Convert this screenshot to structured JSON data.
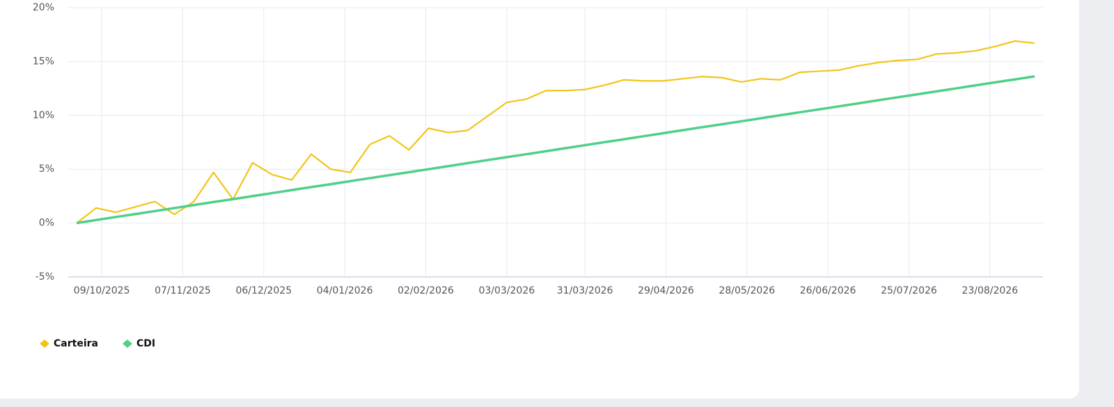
{
  "chart_data": {
    "type": "line",
    "x": [
      "30/09/2025",
      "07/10/2025",
      "14/10/2025",
      "21/10/2025",
      "28/10/2025",
      "04/11/2025",
      "11/11/2025",
      "18/11/2025",
      "25/11/2025",
      "02/12/2025",
      "09/12/2025",
      "16/12/2025",
      "23/12/2025",
      "30/12/2025",
      "06/01/2026",
      "13/01/2026",
      "20/01/2026",
      "27/01/2026",
      "03/02/2026",
      "10/02/2026",
      "17/02/2026",
      "24/02/2026",
      "03/03/2026",
      "10/03/2026",
      "17/03/2026",
      "24/03/2026",
      "31/03/2026",
      "07/04/2026",
      "14/04/2026",
      "21/04/2026",
      "28/04/2026",
      "05/05/2026",
      "12/05/2026",
      "19/05/2026",
      "26/05/2026",
      "02/06/2026",
      "09/06/2026",
      "16/06/2026",
      "23/06/2026",
      "30/06/2026",
      "07/07/2026",
      "14/07/2026",
      "21/07/2026",
      "28/07/2026",
      "04/08/2026",
      "11/08/2026",
      "18/08/2026",
      "25/08/2026",
      "01/09/2026",
      "08/09/2026"
    ],
    "series": [
      {
        "name": "Carteira",
        "color": "#f2c417",
        "values": [
          0,
          1.4,
          1.0,
          1.5,
          2.0,
          0.8,
          2.0,
          4.7,
          2.2,
          5.6,
          4.5,
          4.0,
          6.4,
          5.0,
          4.7,
          7.3,
          8.1,
          6.8,
          8.8,
          8.4,
          8.6,
          9.9,
          11.2,
          11.5,
          12.3,
          12.3,
          12.4,
          12.8,
          13.3,
          13.2,
          13.2,
          13.4,
          13.6,
          13.5,
          13.1,
          13.4,
          13.3,
          14.0,
          14.1,
          14.2,
          14.6,
          14.9,
          15.1,
          15.2,
          15.7,
          15.8,
          16.0,
          16.4,
          16.9,
          16.7
        ]
      },
      {
        "name": "CDI",
        "color": "#4fcf88",
        "values": [
          0,
          0.28,
          0.56,
          0.83,
          1.11,
          1.39,
          1.67,
          1.95,
          2.22,
          2.5,
          2.78,
          3.06,
          3.34,
          3.61,
          3.89,
          4.17,
          4.45,
          4.72,
          5.0,
          5.28,
          5.56,
          5.84,
          6.12,
          6.39,
          6.67,
          6.95,
          7.23,
          7.51,
          7.78,
          8.06,
          8.34,
          8.62,
          8.9,
          9.17,
          9.45,
          9.73,
          10.01,
          10.29,
          10.56,
          10.84,
          11.12,
          11.4,
          11.68,
          11.95,
          12.23,
          12.51,
          12.79,
          13.07,
          13.34,
          13.62
        ]
      }
    ],
    "xlim": [
      "27/09/2025",
      "11/09/2026"
    ],
    "xticks": [
      "09/10/2025",
      "07/11/2025",
      "06/12/2025",
      "04/01/2026",
      "02/02/2026",
      "03/03/2026",
      "31/03/2026",
      "29/04/2026",
      "28/05/2026",
      "26/06/2026",
      "25/07/2026",
      "23/08/2026"
    ],
    "ylim": [
      -5,
      20
    ],
    "yticks": [
      {
        "value": -5,
        "label": "-5%"
      },
      {
        "value": 0,
        "label": "0%"
      },
      {
        "value": 5,
        "label": "5%"
      },
      {
        "value": 10,
        "label": "10%"
      },
      {
        "value": 15,
        "label": "15%"
      },
      {
        "value": 20,
        "label": "20%"
      }
    ],
    "grid": true,
    "legend": "bottom-left"
  }
}
